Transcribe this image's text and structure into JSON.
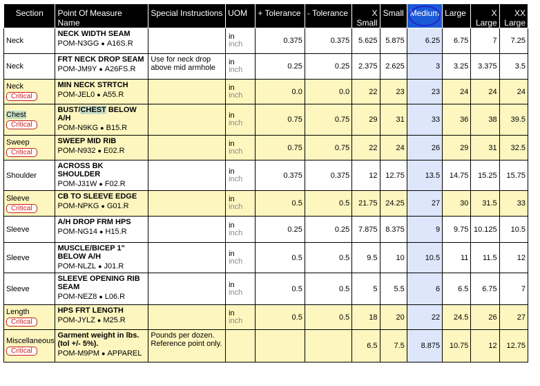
{
  "headers": {
    "section": "Section",
    "pom": "Point Of Measure Name",
    "instructions": "Special Instructions",
    "uom": "UOM",
    "plus_tol": "+ Tolerance",
    "minus_tol": "- Tolerance",
    "xsmall": "X Small",
    "small": "Small",
    "medium": "Medium",
    "large": "Large",
    "xlarge": "X Large",
    "xxlarge": "XX Large"
  },
  "badge_label": "Critical",
  "colors": {
    "highlight_row": "#fdf6bf",
    "medium_column": "#dde6fb",
    "critical": "#c81e1e"
  },
  "rows": [
    {
      "section": "Neck",
      "critical": false,
      "name": "NECK WIDTH SEAM",
      "pom": "POM-N3GG",
      "ref": "A16S.R",
      "instructions": "",
      "uom1": "in",
      "uom2": "inch",
      "plus": "0.375",
      "minus": "0.375",
      "xs": "5.625",
      "s": "5.875",
      "m": "6.25",
      "l": "6.75",
      "xl": "7",
      "xxl": "7.25"
    },
    {
      "section": "Neck",
      "critical": false,
      "name": "FRT NECK DROP SEAM",
      "pom": "POM-JM9Y",
      "ref": "A26FS.R",
      "instructions": "Use for neck drop above mid armhole",
      "uom1": "in",
      "uom2": "inch",
      "plus": "0.25",
      "minus": "0.25",
      "xs": "2.375",
      "s": "2.625",
      "m": "3",
      "l": "3.25",
      "xl": "3.375",
      "xxl": "3.5"
    },
    {
      "section": "Neck",
      "critical": true,
      "name": "MIN NECK STRTCH",
      "pom": "POM-JEL0",
      "ref": "A55.R",
      "instructions": "",
      "uom1": "in",
      "uom2": "inch",
      "plus": "0.0",
      "minus": "0.0",
      "xs": "22",
      "s": "23",
      "m": "23",
      "l": "24",
      "xl": "24",
      "xxl": "24"
    },
    {
      "section": "Chest",
      "critical": true,
      "name": "BUST/CHEST BELOW A/H",
      "pom": "POM-N9KG",
      "ref": "B15.R",
      "instructions": "",
      "uom1": "in",
      "uom2": "inch",
      "plus": "0.75",
      "minus": "0.75",
      "xs": "29",
      "s": "31",
      "m": "33",
      "l": "36",
      "xl": "38",
      "xxl": "39.5"
    },
    {
      "section": "Sweep",
      "critical": true,
      "name": "SWEEP MID RIB",
      "pom": "POM-N932",
      "ref": "E02.R",
      "instructions": "",
      "uom1": "in",
      "uom2": "inch",
      "plus": "0.75",
      "minus": "0.75",
      "xs": "22",
      "s": "24",
      "m": "26",
      "l": "29",
      "xl": "31",
      "xxl": "32.5"
    },
    {
      "section": "Shoulder",
      "critical": false,
      "name": "ACROSS BK SHOULDER",
      "pom": "POM-J31W",
      "ref": "F02.R",
      "instructions": "",
      "uom1": "in",
      "uom2": "inch",
      "plus": "0.375",
      "minus": "0.375",
      "xs": "12",
      "s": "12.75",
      "m": "13.5",
      "l": "14.75",
      "xl": "15.25",
      "xxl": "15.75"
    },
    {
      "section": "Sleeve",
      "critical": true,
      "name": "CB TO SLEEVE EDGE",
      "pom": "POM-NPKG",
      "ref": "G01.R",
      "instructions": "",
      "uom1": "in",
      "uom2": "inch",
      "plus": "0.5",
      "minus": "0.5",
      "xs": "21.75",
      "s": "24.25",
      "m": "27",
      "l": "30",
      "xl": "31.5",
      "xxl": "33"
    },
    {
      "section": "Sleeve",
      "critical": false,
      "name": "A/H DROP FRM HPS",
      "pom": "POM-NG14",
      "ref": "H15.R",
      "instructions": "",
      "uom1": "in",
      "uom2": "inch",
      "plus": "0.25",
      "minus": "0.25",
      "xs": "7.875",
      "s": "8.375",
      "m": "9",
      "l": "9.75",
      "xl": "10.125",
      "xxl": "10.5"
    },
    {
      "section": "Sleeve",
      "critical": false,
      "name": "MUSCLE/BICEP 1\" BELOW A/H",
      "pom": "POM-NLZL",
      "ref": "J01.R",
      "instructions": "",
      "uom1": "in",
      "uom2": "inch",
      "plus": "0.5",
      "minus": "0.5",
      "xs": "9.5",
      "s": "10",
      "m": "10.5",
      "l": "11",
      "xl": "11.5",
      "xxl": "12"
    },
    {
      "section": "Sleeve",
      "critical": false,
      "name": "SLEEVE OPENING RIB SEAM",
      "pom": "POM-NEZ8",
      "ref": "L06.R",
      "instructions": "",
      "uom1": "in",
      "uom2": "inch",
      "plus": "0.5",
      "minus": "0.5",
      "xs": "5",
      "s": "5.5",
      "m": "6",
      "l": "6.5",
      "xl": "6.75",
      "xxl": "7"
    },
    {
      "section": "Length",
      "critical": true,
      "name": "HPS FRT LENGTH",
      "pom": "POM-JYLZ",
      "ref": "M25.R",
      "instructions": "",
      "uom1": "in",
      "uom2": "inch",
      "plus": "0.5",
      "minus": "0.5",
      "xs": "18",
      "s": "20",
      "m": "22",
      "l": "24.5",
      "xl": "26",
      "xxl": "27"
    },
    {
      "section": "Miscellaneous",
      "critical": true,
      "name": "Garment weight in lbs. (tol +/- 5%).",
      "pom": "POM-M9PM",
      "ref": "APPAREL",
      "instructions": "Pounds per dozen. Reference point only.",
      "uom1": "",
      "uom2": "",
      "plus": "",
      "minus": "",
      "xs": "6.5",
      "s": "7.5",
      "m": "8.875",
      "l": "10.75",
      "xl": "12",
      "xxl": "12.75"
    }
  ]
}
